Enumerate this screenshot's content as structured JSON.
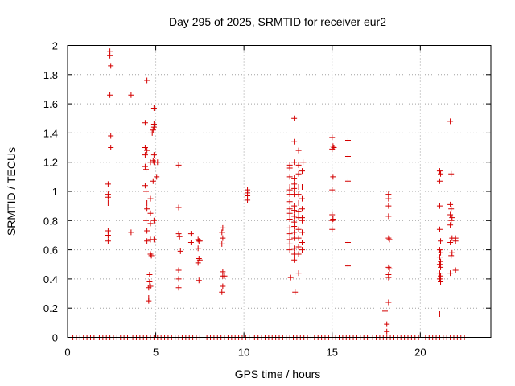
{
  "chart_data": {
    "type": "scatter",
    "title": "Day 295 of 2025, SRMTID for receiver eur2",
    "xlabel": "GPS time / hours",
    "ylabel": "SRMTID / TECUs",
    "xlim": [
      0,
      24
    ],
    "ylim": [
      0,
      2
    ],
    "xticks": [
      0,
      5,
      10,
      15,
      20
    ],
    "yticks": [
      0,
      0.2,
      0.4,
      0.6,
      0.8,
      1,
      1.2,
      1.4,
      1.6,
      1.8,
      2
    ],
    "xtick_labels": [
      "0",
      "5",
      "10",
      "15",
      "20"
    ],
    "ytick_labels": [
      "0",
      "0.2",
      "0.4",
      "0.6",
      "0.8",
      "1",
      "1.2",
      "1.4",
      "1.6",
      "1.8",
      "2"
    ],
    "grid": true,
    "marker": "+",
    "series": [
      {
        "name": "SRMTID",
        "color": "#d40000",
        "points": [
          [
            2.3,
            1.05
          ],
          [
            2.3,
            0.98
          ],
          [
            2.3,
            0.96
          ],
          [
            2.3,
            0.92
          ],
          [
            2.3,
            0.73
          ],
          [
            2.3,
            0.7
          ],
          [
            2.3,
            0.66
          ],
          [
            2.4,
            1.96
          ],
          [
            2.4,
            1.93
          ],
          [
            2.45,
            1.86
          ],
          [
            2.4,
            1.66
          ],
          [
            2.45,
            1.38
          ],
          [
            2.45,
            1.3
          ],
          [
            3.6,
            1.66
          ],
          [
            3.6,
            0.72
          ],
          [
            4.5,
            1.76
          ],
          [
            4.4,
            1.47
          ],
          [
            4.4,
            1.3
          ],
          [
            4.5,
            1.28
          ],
          [
            4.4,
            1.25
          ],
          [
            4.4,
            1.17
          ],
          [
            4.45,
            1.15
          ],
          [
            4.4,
            1.04
          ],
          [
            4.45,
            1.0
          ],
          [
            4.5,
            0.92
          ],
          [
            4.5,
            0.88
          ],
          [
            4.45,
            0.8
          ],
          [
            4.5,
            0.73
          ],
          [
            4.5,
            0.66
          ],
          [
            4.7,
            1.2
          ],
          [
            4.7,
            0.95
          ],
          [
            4.7,
            0.85
          ],
          [
            4.7,
            0.78
          ],
          [
            4.7,
            0.67
          ],
          [
            4.7,
            0.57
          ],
          [
            4.75,
            0.56
          ],
          [
            4.65,
            0.43
          ],
          [
            4.65,
            0.38
          ],
          [
            4.6,
            0.34
          ],
          [
            4.7,
            0.35
          ],
          [
            4.6,
            0.27
          ],
          [
            4.6,
            0.25
          ],
          [
            4.9,
            1.57
          ],
          [
            4.9,
            1.46
          ],
          [
            4.9,
            1.44
          ],
          [
            4.85,
            1.42
          ],
          [
            4.8,
            1.4
          ],
          [
            4.9,
            1.25
          ],
          [
            4.85,
            1.21
          ],
          [
            4.9,
            1.2
          ],
          [
            4.85,
            1.07
          ],
          [
            4.9,
            0.8
          ],
          [
            4.9,
            0.67
          ],
          [
            5.1,
            1.2
          ],
          [
            5.05,
            1.1
          ],
          [
            6.3,
            1.18
          ],
          [
            6.3,
            0.89
          ],
          [
            6.3,
            0.71
          ],
          [
            6.35,
            0.69
          ],
          [
            6.4,
            0.59
          ],
          [
            6.3,
            0.46
          ],
          [
            6.3,
            0.4
          ],
          [
            6.3,
            0.34
          ],
          [
            7.0,
            0.71
          ],
          [
            7.0,
            0.65
          ],
          [
            7.4,
            0.67
          ],
          [
            7.45,
            0.66
          ],
          [
            7.5,
            0.66
          ],
          [
            7.4,
            0.61
          ],
          [
            7.45,
            0.54
          ],
          [
            7.5,
            0.53
          ],
          [
            7.4,
            0.51
          ],
          [
            7.45,
            0.39
          ],
          [
            8.8,
            0.75
          ],
          [
            8.75,
            0.72
          ],
          [
            8.8,
            0.68
          ],
          [
            8.75,
            0.64
          ],
          [
            8.8,
            0.45
          ],
          [
            8.8,
            0.42
          ],
          [
            8.9,
            0.42
          ],
          [
            8.8,
            0.35
          ],
          [
            8.75,
            0.31
          ],
          [
            10.2,
            1.01
          ],
          [
            10.2,
            0.99
          ],
          [
            10.2,
            0.97
          ],
          [
            10.2,
            0.94
          ],
          [
            12.6,
            1.18
          ],
          [
            12.6,
            1.16
          ],
          [
            12.6,
            1.1
          ],
          [
            12.6,
            1.03
          ],
          [
            12.6,
            1.01
          ],
          [
            12.6,
            0.98
          ],
          [
            12.6,
            0.93
          ],
          [
            12.6,
            0.88
          ],
          [
            12.6,
            0.85
          ],
          [
            12.6,
            0.81
          ],
          [
            12.6,
            0.75
          ],
          [
            12.6,
            0.71
          ],
          [
            12.6,
            0.67
          ],
          [
            12.6,
            0.64
          ],
          [
            12.6,
            0.6
          ],
          [
            12.65,
            0.41
          ],
          [
            12.85,
            1.5
          ],
          [
            12.85,
            1.34
          ],
          [
            12.85,
            1.2
          ],
          [
            12.85,
            1.09
          ],
          [
            12.85,
            1.05
          ],
          [
            12.85,
            1.02
          ],
          [
            12.85,
            0.98
          ],
          [
            12.85,
            0.9
          ],
          [
            12.85,
            0.87
          ],
          [
            12.85,
            0.83
          ],
          [
            12.85,
            0.79
          ],
          [
            12.85,
            0.76
          ],
          [
            12.85,
            0.72
          ],
          [
            12.85,
            0.68
          ],
          [
            12.85,
            0.61
          ],
          [
            12.85,
            0.57
          ],
          [
            12.85,
            0.53
          ],
          [
            12.9,
            0.31
          ],
          [
            13.1,
            1.28
          ],
          [
            13.1,
            1.18
          ],
          [
            13.1,
            1.12
          ],
          [
            13.1,
            1.03
          ],
          [
            13.1,
            0.98
          ],
          [
            13.1,
            0.92
          ],
          [
            13.1,
            0.86
          ],
          [
            13.1,
            0.82
          ],
          [
            13.1,
            0.74
          ],
          [
            13.1,
            0.68
          ],
          [
            13.1,
            0.62
          ],
          [
            13.1,
            0.57
          ],
          [
            13.1,
            0.44
          ],
          [
            13.35,
            1.2
          ],
          [
            13.3,
            1.14
          ],
          [
            13.3,
            1.03
          ],
          [
            13.3,
            0.95
          ],
          [
            13.3,
            0.88
          ],
          [
            13.3,
            0.82
          ],
          [
            13.3,
            0.8
          ],
          [
            13.3,
            0.72
          ],
          [
            13.3,
            0.65
          ],
          [
            13.3,
            0.6
          ],
          [
            15.0,
            1.37
          ],
          [
            15.05,
            1.31
          ],
          [
            15.0,
            1.29
          ],
          [
            15.1,
            1.3
          ],
          [
            15.05,
            1.1
          ],
          [
            15.0,
            1.01
          ],
          [
            15.0,
            0.84
          ],
          [
            15.05,
            0.81
          ],
          [
            15.0,
            0.8
          ],
          [
            15.0,
            0.74
          ],
          [
            15.9,
            1.35
          ],
          [
            15.9,
            1.24
          ],
          [
            15.9,
            1.07
          ],
          [
            15.9,
            0.65
          ],
          [
            15.9,
            0.49
          ],
          [
            18.0,
            0.18
          ],
          [
            18.1,
            0.09
          ],
          [
            18.1,
            0.04
          ],
          [
            18.2,
            0.98
          ],
          [
            18.2,
            0.95
          ],
          [
            18.2,
            0.9
          ],
          [
            18.2,
            0.83
          ],
          [
            18.2,
            0.68
          ],
          [
            18.25,
            0.67
          ],
          [
            18.2,
            0.48
          ],
          [
            18.25,
            0.47
          ],
          [
            18.2,
            0.43
          ],
          [
            18.2,
            0.41
          ],
          [
            18.2,
            0.24
          ],
          [
            21.1,
            1.14
          ],
          [
            21.15,
            1.12
          ],
          [
            21.1,
            1.07
          ],
          [
            21.1,
            0.9
          ],
          [
            21.1,
            0.74
          ],
          [
            21.15,
            0.66
          ],
          [
            21.1,
            0.6
          ],
          [
            21.15,
            0.58
          ],
          [
            21.1,
            0.55
          ],
          [
            21.15,
            0.52
          ],
          [
            21.1,
            0.5
          ],
          [
            21.15,
            0.48
          ],
          [
            21.1,
            0.44
          ],
          [
            21.15,
            0.42
          ],
          [
            21.1,
            0.4
          ],
          [
            21.15,
            0.38
          ],
          [
            21.1,
            0.16
          ],
          [
            21.7,
            1.48
          ],
          [
            21.75,
            1.12
          ],
          [
            21.7,
            0.91
          ],
          [
            21.75,
            0.88
          ],
          [
            21.7,
            0.84
          ],
          [
            21.8,
            0.82
          ],
          [
            21.75,
            0.8
          ],
          [
            21.7,
            0.77
          ],
          [
            21.8,
            0.68
          ],
          [
            21.7,
            0.65
          ],
          [
            21.8,
            0.58
          ],
          [
            21.75,
            0.56
          ],
          [
            21.7,
            0.44
          ],
          [
            22.0,
            0.68
          ],
          [
            22.0,
            0.66
          ],
          [
            22.0,
            0.46
          ]
        ],
        "zero_points_x": [
          0.3,
          0.5,
          0.7,
          0.9,
          1.1,
          1.3,
          1.5,
          1.8,
          2.0,
          2.2,
          2.4,
          2.6,
          2.8,
          3.0,
          3.2,
          3.4,
          3.7,
          3.9,
          4.1,
          4.3,
          4.5,
          4.7,
          4.9,
          5.1,
          5.3,
          5.5,
          5.7,
          5.9,
          6.1,
          6.3,
          6.5,
          6.7,
          6.9,
          7.1,
          7.3,
          7.5,
          7.9,
          8.1,
          8.3,
          8.5,
          8.7,
          8.9,
          9.1,
          9.3,
          9.5,
          9.7,
          9.9,
          10.1,
          10.3,
          10.6,
          10.8,
          11.0,
          11.2,
          11.4,
          11.6,
          11.8,
          12.0,
          12.2,
          12.4,
          12.6,
          12.8,
          13.0,
          13.2,
          13.4,
          13.6,
          13.8,
          14.0,
          14.2,
          14.4,
          14.6,
          14.8,
          15.0,
          15.2,
          15.4,
          15.6,
          15.8,
          16.0,
          16.2,
          16.4,
          16.6,
          16.8,
          17.0,
          17.3,
          17.5,
          17.7,
          17.9,
          18.1,
          18.3,
          18.5,
          18.7,
          18.9,
          19.1,
          19.3,
          19.5,
          19.7,
          19.9,
          20.1,
          20.3,
          20.5,
          20.7,
          20.9,
          21.1,
          21.3,
          21.5,
          21.7,
          21.9,
          22.1,
          22.3,
          22.5,
          22.7
        ]
      }
    ]
  }
}
